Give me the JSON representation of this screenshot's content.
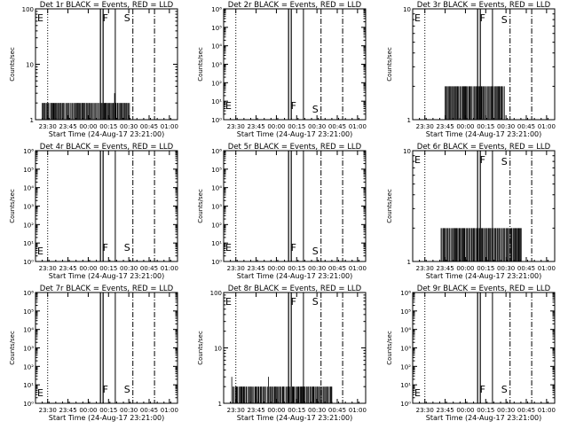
{
  "colors": {
    "background": "#ffffff",
    "foreground": "#000000",
    "lld_red": "#ff0000"
  },
  "x_tick_labels": [
    "23:30",
    "23:45",
    "00:00",
    "00:15",
    "00:30",
    "00:45",
    "01:00"
  ],
  "xlabel": "Start Time (24-Aug-17 23:21:00)",
  "ylabel": "Counts/sec",
  "marker_labels": {
    "e": "E",
    "f": "F",
    "s": "S"
  },
  "chart_data": [
    {
      "type": "line",
      "detector": "1r",
      "title": "Det 1r BLACK = Events, RED = LLD",
      "yscale": "log",
      "ylim": [
        1,
        100
      ],
      "y_tick_labels": [
        "1",
        "10",
        "100"
      ],
      "xlim_minutes_from_start": [
        0,
        105
      ],
      "events_range": [
        1,
        3
      ],
      "events_span": [
        "23:26",
        "00:31"
      ]
    },
    {
      "type": "line",
      "detector": "2r",
      "title": "Det 2r BLACK = Events, RED = LLD",
      "yscale": "log",
      "ylim": [
        1,
        1000000
      ],
      "y_tick_labels": [
        "10⁰",
        "10¹",
        "10²",
        "10³",
        "10⁴",
        "10⁵",
        "10⁶"
      ],
      "xlim_minutes_from_start": [
        0,
        105
      ],
      "events_range": [],
      "events_span": []
    },
    {
      "type": "line",
      "detector": "3r",
      "title": "Det 3r BLACK = Events, RED = LLD",
      "yscale": "log",
      "ylim": [
        1,
        10
      ],
      "y_tick_labels": [
        "1",
        "10"
      ],
      "xlim_minutes_from_start": [
        0,
        105
      ],
      "events_range": [
        1,
        2
      ],
      "events_span": [
        "23:45",
        "00:29"
      ]
    },
    {
      "type": "line",
      "detector": "4r",
      "title": "Det 4r BLACK = Events, RED = LLD",
      "yscale": "log",
      "ylim": [
        1,
        1000000
      ],
      "y_tick_labels": [
        "10⁰",
        "10¹",
        "10²",
        "10³",
        "10⁴",
        "10⁵",
        "10⁶"
      ],
      "xlim_minutes_from_start": [
        0,
        105
      ],
      "events_range": [],
      "events_span": []
    },
    {
      "type": "line",
      "detector": "5r",
      "title": "Det 5r BLACK = Events, RED = LLD",
      "yscale": "log",
      "ylim": [
        1,
        1000000
      ],
      "y_tick_labels": [
        "10⁰",
        "10¹",
        "10²",
        "10³",
        "10⁴",
        "10⁵",
        "10⁶"
      ],
      "xlim_minutes_from_start": [
        0,
        105
      ],
      "events_range": [],
      "events_span": []
    },
    {
      "type": "line",
      "detector": "6r",
      "title": "Det 6r BLACK = Events, RED = LLD",
      "yscale": "log",
      "ylim": [
        1,
        10
      ],
      "y_tick_labels": [
        "1",
        "10"
      ],
      "xlim_minutes_from_start": [
        0,
        105
      ],
      "events_range": [
        1,
        2
      ],
      "events_span": [
        "23:42",
        "00:42"
      ]
    },
    {
      "type": "line",
      "detector": "7r",
      "title": "Det 7r BLACK = Events, RED = LLD",
      "yscale": "log",
      "ylim": [
        1,
        1000000
      ],
      "y_tick_labels": [
        "10⁰",
        "10¹",
        "10²",
        "10³",
        "10⁴",
        "10⁵",
        "10⁶"
      ],
      "xlim_minutes_from_start": [
        0,
        105
      ],
      "events_range": [],
      "events_span": []
    },
    {
      "type": "line",
      "detector": "8r",
      "title": "Det 8r BLACK = Events, RED = LLD",
      "yscale": "log",
      "ylim": [
        1,
        100
      ],
      "y_tick_labels": [
        "1",
        "10",
        "100"
      ],
      "xlim_minutes_from_start": [
        0,
        105
      ],
      "events_range": [
        1,
        3
      ],
      "events_span": [
        "23:27",
        "00:41"
      ]
    },
    {
      "type": "line",
      "detector": "9r",
      "title": "Det 9r BLACK = Events, RED = LLD",
      "yscale": "log",
      "ylim": [
        1,
        1000000
      ],
      "y_tick_labels": [
        "10⁰",
        "10¹",
        "10²",
        "10³",
        "10⁴",
        "10⁵",
        "10⁶"
      ],
      "xlim_minutes_from_start": [
        0,
        105
      ],
      "events_range": [],
      "events_span": []
    }
  ]
}
